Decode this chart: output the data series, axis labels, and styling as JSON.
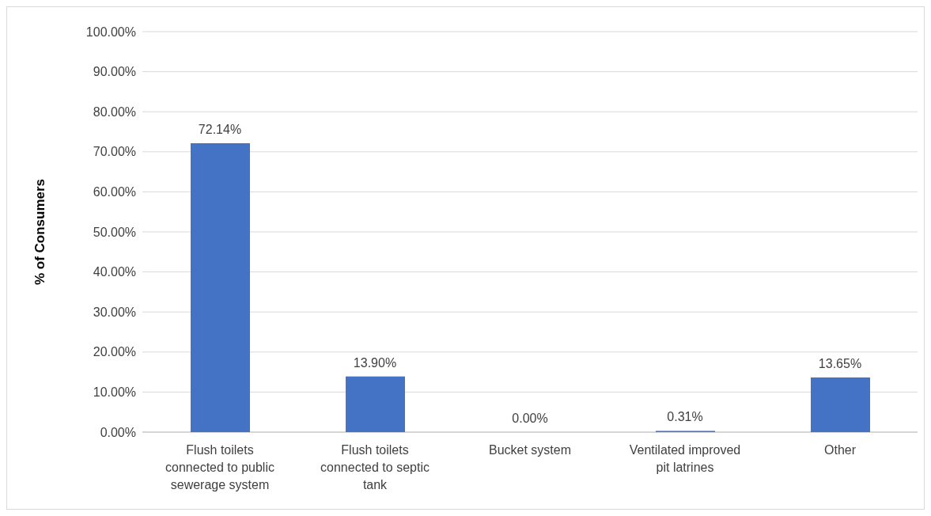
{
  "chart_data": {
    "type": "bar",
    "ylabel": "% of Consumers",
    "categories": [
      "Flush toilets connected to public sewerage system",
      "Flush toilets connected to septic tank",
      "Bucket system",
      "Ventilated improved pit latrines",
      "Other"
    ],
    "values": [
      72.14,
      13.9,
      0,
      0.31,
      13.65
    ],
    "color": "#4472c4",
    "value_labels": [
      "72.14%",
      "13.90%",
      "0.00%",
      "0.31%",
      "13.65%"
    ],
    "ylim": [
      0,
      100
    ],
    "yticks": [
      {
        "value": 0,
        "label": "0.00%"
      },
      {
        "value": 10,
        "label": "10.00%"
      },
      {
        "value": 20,
        "label": "20.00%"
      },
      {
        "value": 30,
        "label": "30.00%"
      },
      {
        "value": 40,
        "label": "40.00%"
      },
      {
        "value": 50,
        "label": "50.00%"
      },
      {
        "value": 60,
        "label": "60.00%"
      },
      {
        "value": 70,
        "label": "70.00%"
      },
      {
        "value": 80,
        "label": "80.00%"
      },
      {
        "value": 90,
        "label": "90.00%"
      },
      {
        "value": 100,
        "label": "100.00%"
      }
    ],
    "grid": "y"
  }
}
